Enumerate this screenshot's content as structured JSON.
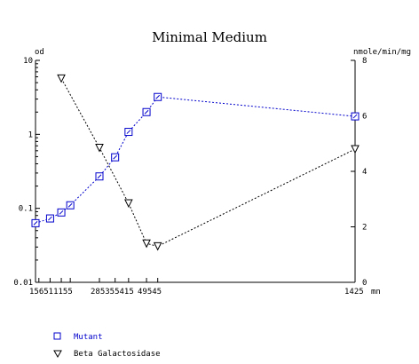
{
  "chart_data": {
    "type": "line",
    "title": "Minimal Medium",
    "left_axis": {
      "unit_label": "od",
      "scale": "log",
      "range": [
        0.01,
        10
      ],
      "ticks": [
        {
          "value": 10,
          "label": "10"
        },
        {
          "value": 1,
          "label": "1"
        },
        {
          "value": 0.1,
          "label": "0.1"
        },
        {
          "value": 0.01,
          "label": "0.01"
        }
      ]
    },
    "right_axis": {
      "unit_label": "nmole/min/mg",
      "scale": "linear",
      "range": [
        0,
        8
      ],
      "ticks": [
        {
          "value": 8,
          "label": "8"
        },
        {
          "value": 6,
          "label": "6"
        },
        {
          "value": 4,
          "label": "4"
        },
        {
          "value": 2,
          "label": "2"
        },
        {
          "value": 0,
          "label": "0"
        }
      ]
    },
    "x_axis": {
      "unit_label": "mn",
      "range": [
        0,
        1425
      ],
      "tick_labels_text": "156511155",
      "tick_labels_text2": "285355415",
      "tick_labels_text3": "49545",
      "last_tick_label": "1425",
      "tick_values": [
        0,
        15,
        65,
        115,
        155,
        285,
        355,
        415,
        495,
        545,
        1425
      ]
    },
    "series": [
      {
        "name": "Mutant",
        "axis": "left",
        "color": "#0000cc",
        "marker": "square",
        "x": [
          0,
          65,
          115,
          155,
          285,
          355,
          415,
          495,
          545,
          1425
        ],
        "y": [
          0.063,
          0.073,
          0.088,
          0.11,
          0.27,
          0.49,
          1.08,
          2.0,
          3.2,
          1.75
        ]
      },
      {
        "name": "Beta Galactosidase",
        "axis": "right",
        "color": "#000000",
        "marker": "triangle-down",
        "x": [
          115,
          285,
          415,
          495,
          545,
          1425
        ],
        "y": [
          7.35,
          4.85,
          2.85,
          1.4,
          1.3,
          4.8
        ]
      }
    ]
  }
}
